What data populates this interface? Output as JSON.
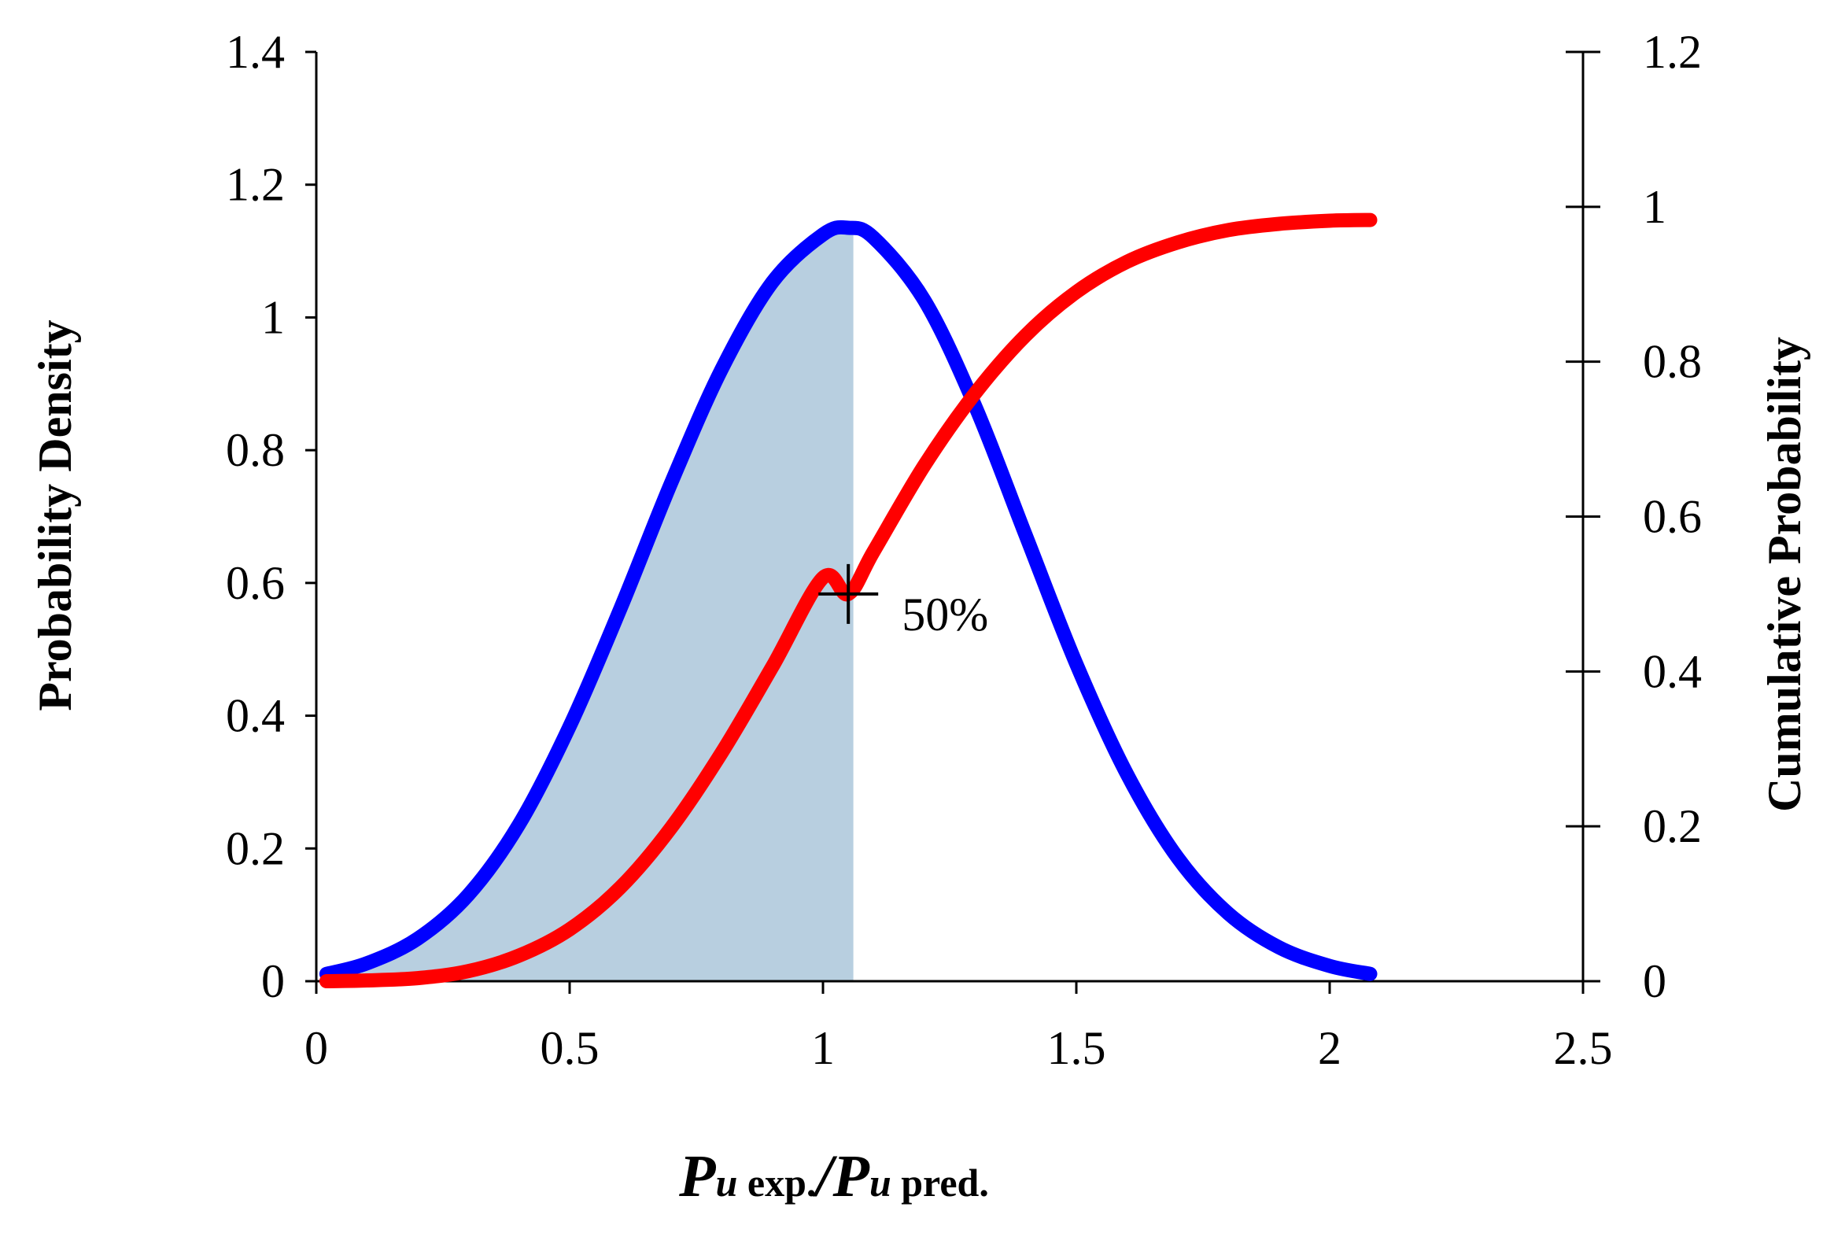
{
  "chart_data": {
    "type": "line",
    "title": "",
    "ylabel": "Probability Density",
    "y2label": "Cumulative Probability",
    "xlabel": {
      "p1": "P",
      "u1": "u",
      "sub1": " exp.",
      "slash": "/",
      "p2": "P",
      "u2": "u",
      "sub2": " pred."
    },
    "xlim": [
      0,
      2.5
    ],
    "ylim": [
      0,
      1.4
    ],
    "y2lim": [
      0,
      1.2
    ],
    "xticks": [
      0,
      0.5,
      1,
      1.5,
      2,
      2.5
    ],
    "xtick_labels": [
      "0",
      "0.5",
      "1",
      "1.5",
      "2",
      "2.5"
    ],
    "yticks": [
      0,
      0.2,
      0.4,
      0.6,
      0.8,
      1,
      1.2,
      1.4
    ],
    "ytick_labels": [
      "0",
      "0.2",
      "0.4",
      "0.6",
      "0.8",
      "1",
      "1.2",
      "1.4"
    ],
    "y2ticks": [
      0,
      0.2,
      0.4,
      0.6,
      0.8,
      1,
      1.2
    ],
    "y2tick_labels": [
      "0",
      "0.2",
      "0.4",
      "0.6",
      "0.8",
      "1",
      "1.2"
    ],
    "grid": false,
    "series": [
      {
        "name": "Probability Density",
        "axis": "left",
        "color": "#0000ff",
        "x": [
          0.02,
          0.1,
          0.2,
          0.3,
          0.4,
          0.5,
          0.6,
          0.7,
          0.8,
          0.9,
          1.0,
          1.05,
          1.1,
          1.2,
          1.3,
          1.4,
          1.5,
          1.6,
          1.7,
          1.8,
          1.9,
          2.0,
          2.08
        ],
        "values": [
          0.011,
          0.027,
          0.064,
          0.13,
          0.236,
          0.384,
          0.561,
          0.75,
          0.922,
          1.053,
          1.125,
          1.135,
          1.12,
          1.026,
          0.867,
          0.672,
          0.478,
          0.312,
          0.186,
          0.102,
          0.051,
          0.023,
          0.011
        ]
      },
      {
        "name": "Cumulative Probability",
        "axis": "right",
        "color": "#ff0000",
        "x": [
          0.02,
          0.1,
          0.2,
          0.3,
          0.4,
          0.5,
          0.6,
          0.7,
          0.8,
          0.9,
          1.0,
          1.05,
          1.1,
          1.2,
          1.3,
          1.4,
          1.5,
          1.6,
          1.7,
          1.8,
          1.9,
          2.0,
          2.08
        ],
        "values": [
          0.0,
          0.001,
          0.004,
          0.013,
          0.033,
          0.067,
          0.121,
          0.198,
          0.295,
          0.406,
          0.521,
          0.5,
          0.555,
          0.666,
          0.759,
          0.834,
          0.89,
          0.929,
          0.954,
          0.97,
          0.978,
          0.982,
          0.983
        ]
      }
    ],
    "shaded_region": {
      "from": 0.02,
      "to": 1.06,
      "color": "#b8cfe0",
      "under": "Probability Density"
    },
    "annotations": [
      {
        "text": "50%",
        "x": 1.05,
        "y2": 0.5,
        "marker": "+"
      }
    ]
  }
}
